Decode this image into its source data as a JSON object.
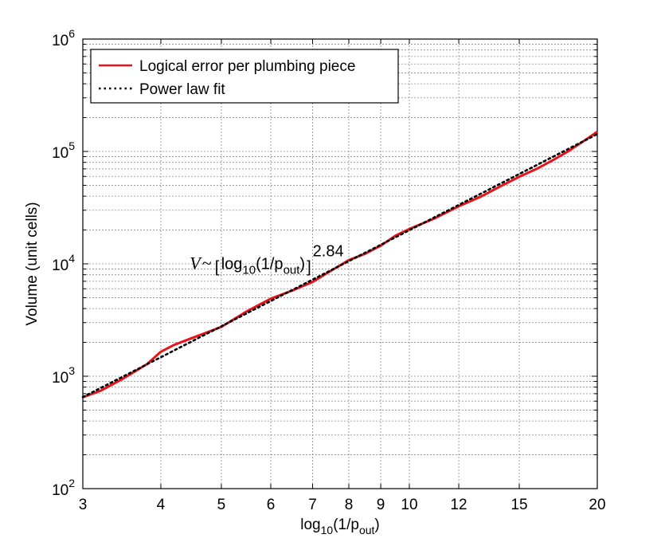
{
  "chart_data": {
    "type": "line",
    "xscale": "log",
    "yscale": "log",
    "xlim": [
      3,
      20
    ],
    "ylim": [
      100,
      1000000
    ],
    "grid": true,
    "legend_position": "top-left",
    "xlabel": {
      "prefix": "log",
      "sub": "10",
      "mid": "(1/p",
      "sub2": "out",
      "suffix": ")"
    },
    "ylabel": "Volume (unit cells)",
    "x_ticks": [
      {
        "value": 3,
        "label": "3"
      },
      {
        "value": 4,
        "label": "4"
      },
      {
        "value": 5,
        "label": "5"
      },
      {
        "value": 6,
        "label": "6"
      },
      {
        "value": 7,
        "label": "7"
      },
      {
        "value": 8,
        "label": "8"
      },
      {
        "value": 9,
        "label": "9"
      },
      {
        "value": 10,
        "label": "10"
      },
      {
        "value": 12,
        "label": "12"
      },
      {
        "value": 15,
        "label": "15"
      },
      {
        "value": 20,
        "label": "20"
      }
    ],
    "y_ticks": [
      {
        "value": 100,
        "base": "10",
        "exp": "2"
      },
      {
        "value": 1000,
        "base": "10",
        "exp": "3"
      },
      {
        "value": 10000,
        "base": "10",
        "exp": "4"
      },
      {
        "value": 100000,
        "base": "10",
        "exp": "5"
      },
      {
        "value": 1000000,
        "base": "10",
        "exp": "6"
      }
    ],
    "series": [
      {
        "name": "Logical error per plumbing piece",
        "color": "#e8141b",
        "style": "solid",
        "x": [
          3,
          3.2,
          3.5,
          3.8,
          4.0,
          4.2,
          4.5,
          5.0,
          5.5,
          6.0,
          6.5,
          7.0,
          7.5,
          8.0,
          8.5,
          9.0,
          9.5,
          10.0,
          11.0,
          12.0,
          13.0,
          14.0,
          15.0,
          16.0,
          17.0,
          18.0,
          19.0,
          20.0
        ],
        "y": [
          650,
          740,
          970,
          1280,
          1650,
          1900,
          2200,
          2750,
          3800,
          4900,
          5800,
          6900,
          8700,
          10800,
          12300,
          14500,
          17800,
          20400,
          25500,
          32500,
          39500,
          49000,
          59500,
          70000,
          84000,
          101000,
          123000,
          150000
        ]
      },
      {
        "name": "Power law fit",
        "color": "#000000",
        "style": "dotted",
        "prefactor": 28.8,
        "exponent": 2.84,
        "x": [
          3,
          3.5,
          4,
          5,
          6,
          7,
          8,
          9,
          10,
          12,
          15,
          20
        ],
        "y": [
          656,
          1015,
          1490,
          2800,
          4670,
          7170,
          10500,
          14700,
          19900,
          33800,
          63600,
          144000
        ]
      }
    ],
    "annotation": {
      "lhs": "V",
      "approx": "~",
      "log": "log",
      "sub": "10",
      "arg": "(1/p",
      "arg_sub": "out",
      "close": ")",
      "exponent": "2.84",
      "at": {
        "x": 4.45,
        "y": 9000
      }
    }
  }
}
